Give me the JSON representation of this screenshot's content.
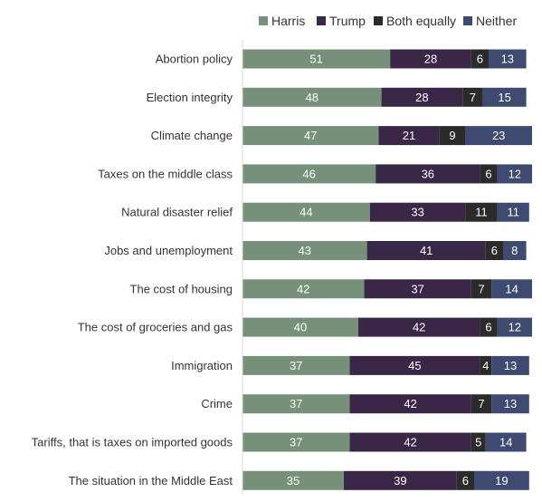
{
  "chart_data": {
    "type": "bar",
    "orientation": "horizontal",
    "stacked": true,
    "legend_position": "top",
    "grid": false,
    "categories": [
      "Abortion policy",
      "Election integrity",
      "Climate change",
      "Taxes on the middle class",
      "Natural disaster relief",
      "Jobs and unemployment",
      "The cost of housing",
      "The cost of groceries and gas",
      "Immigration",
      "Crime",
      "Tariffs, that is taxes on imported goods",
      "The situation in the Middle East"
    ],
    "series": [
      {
        "name": "Harris",
        "color": "#77907a",
        "values": [
          51,
          48,
          47,
          46,
          44,
          43,
          42,
          40,
          37,
          37,
          37,
          35
        ]
      },
      {
        "name": "Trump",
        "color": "#3a2747",
        "values": [
          28,
          28,
          21,
          36,
          33,
          41,
          37,
          42,
          45,
          42,
          42,
          39
        ]
      },
      {
        "name": "Both equally",
        "color": "#2b2b2b",
        "values": [
          6,
          7,
          9,
          6,
          11,
          6,
          7,
          6,
          4,
          7,
          5,
          6
        ]
      },
      {
        "name": "Neither",
        "color": "#3e4a6f",
        "values": [
          13,
          15,
          23,
          12,
          11,
          8,
          14,
          12,
          13,
          13,
          14,
          19
        ]
      }
    ]
  }
}
